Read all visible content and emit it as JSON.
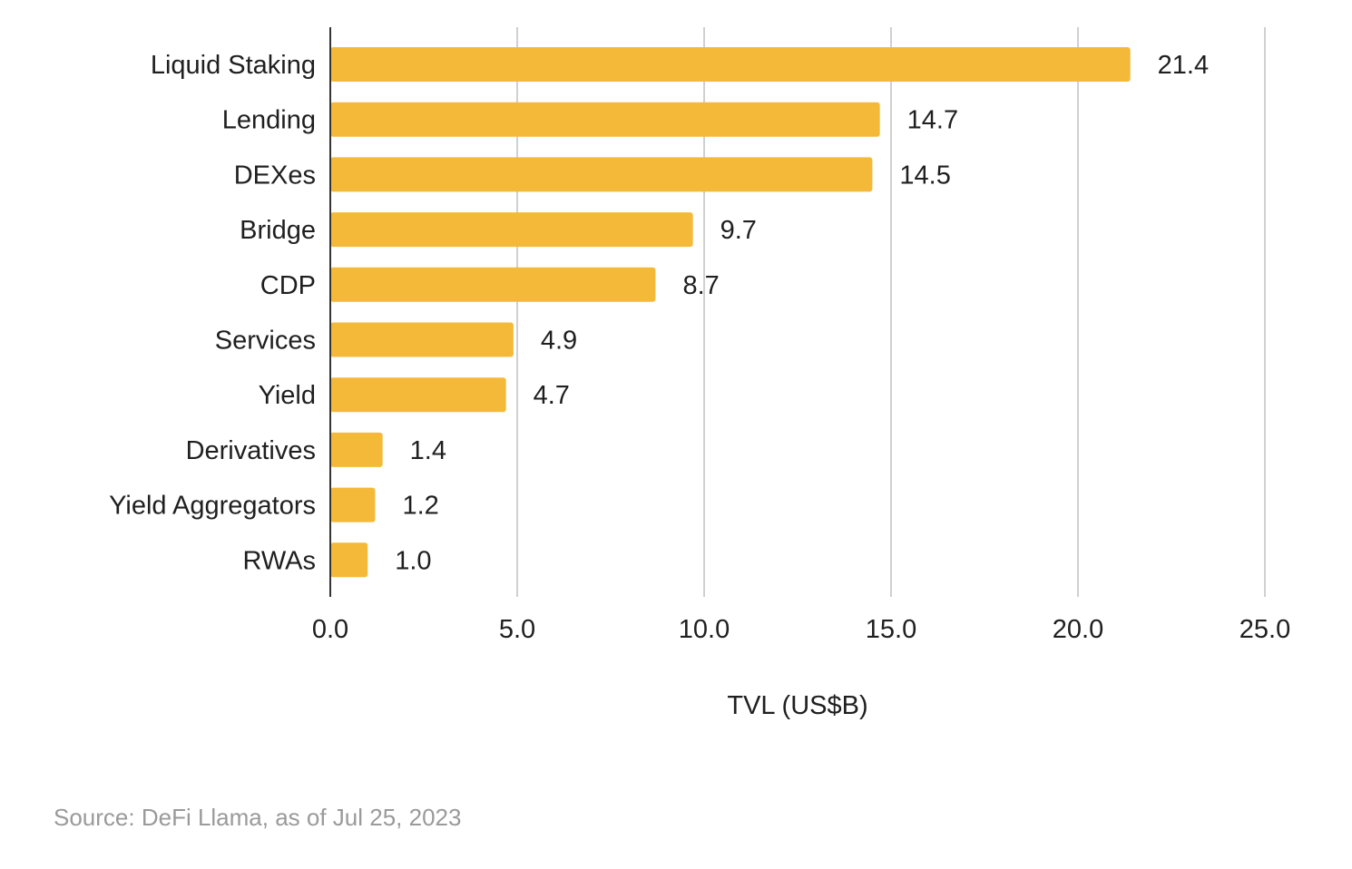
{
  "chart_data": {
    "type": "bar",
    "orientation": "horizontal",
    "categories": [
      "Liquid Staking",
      "Lending",
      "DEXes",
      "Bridge",
      "CDP",
      "Services",
      "Yield",
      "Derivatives",
      "Yield Aggregators",
      "RWAs"
    ],
    "values": [
      21.4,
      14.7,
      14.5,
      9.7,
      8.7,
      4.9,
      4.7,
      1.4,
      1.2,
      1.0
    ],
    "value_labels": [
      "21.4",
      "14.7",
      "14.5",
      "9.7",
      "8.7",
      "4.9",
      "4.7",
      "1.4",
      "1.2",
      "1.0"
    ],
    "xlabel": "TVL (US$B)",
    "ylabel": "",
    "xlim": [
      0,
      25
    ],
    "x_ticks": [
      0,
      5,
      10,
      15,
      20,
      25
    ],
    "x_tick_labels": [
      "0.0",
      "5.0",
      "10.0",
      "15.0",
      "20.0",
      "25.0"
    ],
    "grid": "vertical",
    "legend": "none",
    "bar_color": "#f5b939",
    "grid_color": "#d0d0d0",
    "axis_color": "#333333"
  },
  "source": "Source: DeFi Llama, as of Jul 25, 2023"
}
